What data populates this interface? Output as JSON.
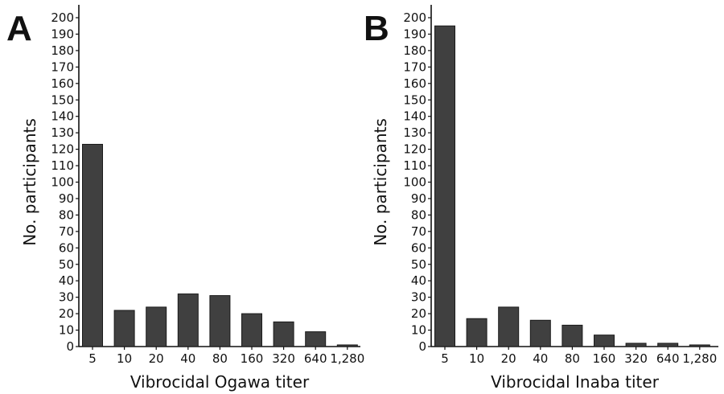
{
  "chart_data": [
    {
      "type": "bar",
      "panel_label": "A",
      "categories": [
        "5",
        "10",
        "20",
        "40",
        "80",
        "160",
        "320",
        "640",
        "1,280"
      ],
      "values": [
        123,
        22,
        24,
        32,
        31,
        20,
        15,
        9,
        1
      ],
      "xlabel": "Vibrocidal Ogawa titer",
      "ylabel": "No. participants",
      "ylim": [
        0,
        200
      ],
      "yticks": [
        0,
        10,
        20,
        30,
        40,
        50,
        60,
        70,
        80,
        90,
        100,
        110,
        120,
        130,
        140,
        150,
        160,
        170,
        180,
        190,
        200
      ],
      "grid": false,
      "bar_color": "#404040"
    },
    {
      "type": "bar",
      "panel_label": "B",
      "categories": [
        "5",
        "10",
        "20",
        "40",
        "80",
        "160",
        "320",
        "640",
        "1,280"
      ],
      "values": [
        195,
        17,
        24,
        16,
        13,
        7,
        2,
        2,
        1
      ],
      "xlabel": "Vibrocidal Inaba titer",
      "ylabel": "No. participants",
      "ylim": [
        0,
        200
      ],
      "yticks": [
        0,
        10,
        20,
        30,
        40,
        50,
        60,
        70,
        80,
        90,
        100,
        110,
        120,
        130,
        140,
        150,
        160,
        170,
        180,
        190,
        200
      ],
      "grid": false,
      "bar_color": "#404040"
    }
  ]
}
